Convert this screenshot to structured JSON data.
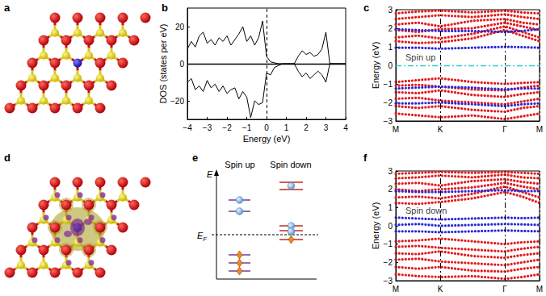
{
  "panel_labels": [
    "a",
    "b",
    "c",
    "d",
    "e",
    "f"
  ],
  "chart_data": [
    {
      "type": "line",
      "xlabel": "Energy (eV)",
      "ylabel": "DOS (states per eV)",
      "xlim": [
        -4,
        4
      ],
      "ylim": [
        -30,
        30
      ],
      "xticks": [
        {
          "value": -4,
          "label": "−4"
        },
        {
          "value": -3,
          "label": "−3"
        },
        {
          "value": -2,
          "label": "−2"
        },
        {
          "value": -1,
          "label": "−1"
        },
        0,
        1,
        2,
        3,
        4
      ],
      "yticks": [
        {
          "value": -20,
          "label": "−20"
        },
        0,
        20
      ],
      "grid": false,
      "vlines": [
        {
          "value": 0,
          "line_style": "dashed",
          "color": "#000000"
        }
      ],
      "hlines": [
        {
          "value": 0,
          "line_style": "solid",
          "color": "#000000"
        }
      ],
      "x": [
        -4,
        -3.8,
        -3.6,
        -3.4,
        -3.2,
        -3.0,
        -2.8,
        -2.6,
        -2.4,
        -2.2,
        -2.0,
        -1.8,
        -1.6,
        -1.4,
        -1.2,
        -1.0,
        -0.8,
        -0.6,
        -0.4,
        -0.2,
        0,
        0.2,
        0.4,
        0.6,
        0.8,
        1.0,
        1.2,
        1.4,
        1.6,
        1.8,
        2.0,
        2.2,
        2.4,
        2.6,
        2.8,
        3.0,
        3.2,
        3.4,
        3.6,
        3.8,
        4.0
      ],
      "series": [
        {
          "color": "#000000",
          "line_style": "solid",
          "marker": "none",
          "values": [
            8,
            12,
            9,
            15,
            17,
            11,
            13,
            10,
            14,
            12,
            15,
            10,
            13,
            16,
            20,
            12,
            15,
            10,
            14,
            23,
            4,
            1,
            0.5,
            0,
            0,
            0,
            0,
            0,
            4,
            7,
            5,
            6,
            4,
            5,
            8,
            17,
            0,
            0,
            0,
            0,
            0
          ]
        },
        {
          "color": "#000000",
          "line_style": "solid",
          "marker": "none",
          "values": [
            -10,
            -8,
            -14,
            -12,
            -15,
            -9,
            -13,
            -11,
            -15,
            -12,
            -16,
            -14,
            -13,
            -19,
            -15,
            -18,
            -29,
            -20,
            -22,
            -21,
            -5,
            -6,
            -2,
            -1,
            0,
            0,
            0,
            0,
            -4,
            -7,
            -5,
            -8,
            -6,
            -4,
            -6,
            -10,
            0,
            0,
            0,
            0,
            0
          ]
        }
      ]
    },
    {
      "type": "line",
      "ylabel": "Energy (eV)",
      "xlim": [
        0,
        1.78
      ],
      "ylim": [
        -3,
        3
      ],
      "xticks": [
        {
          "value": 0,
          "label": "M"
        },
        {
          "value": 0.55,
          "label": "K"
        },
        {
          "value": 1.35,
          "label": "Γ"
        },
        {
          "value": 1.78,
          "label": "M"
        }
      ],
      "yticks": [
        {
          "value": -3,
          "label": "−3"
        },
        {
          "value": -2,
          "label": "−2"
        },
        {
          "value": -1,
          "label": "−1"
        },
        0,
        1,
        2,
        3
      ],
      "grid": "x",
      "hlines": [
        {
          "value": 0,
          "line_style": "dashdot",
          "color": "#33cccc"
        }
      ],
      "annotations": [
        {
          "text": "Spin up",
          "x": 0.12,
          "y": 0.45
        }
      ],
      "x": [
        0,
        0.275,
        0.55,
        0.95,
        1.35,
        1.565,
        1.78
      ],
      "series": [
        {
          "color": "#e41a1c",
          "line_style": "dotted",
          "marker": "none",
          "values": [
            1.3,
            1.2,
            1.25,
            1.45,
            1.9,
            1.6,
            1.3
          ]
        },
        {
          "color": "#e41a1c",
          "line_style": "dotted",
          "marker": "none",
          "values": [
            1.5,
            1.6,
            1.45,
            1.7,
            2.1,
            1.8,
            1.5
          ]
        },
        {
          "color": "#e41a1c",
          "line_style": "dotted",
          "marker": "none",
          "values": [
            1.9,
            1.8,
            1.95,
            2.0,
            2.3,
            2.1,
            1.9
          ]
        },
        {
          "color": "#e41a1c",
          "line_style": "dotted",
          "marker": "none",
          "values": [
            2.2,
            2.3,
            2.1,
            2.4,
            2.5,
            2.3,
            2.2
          ]
        },
        {
          "color": "#e41a1c",
          "line_style": "dotted",
          "marker": "none",
          "values": [
            2.5,
            2.6,
            2.7,
            2.6,
            2.75,
            2.6,
            2.5
          ]
        },
        {
          "color": "#e41a1c",
          "line_style": "dotted",
          "marker": "none",
          "values": [
            2.8,
            2.9,
            2.95,
            2.85,
            2.95,
            2.85,
            2.8
          ]
        },
        {
          "color": "#e41a1c",
          "line_style": "dotted",
          "marker": "none",
          "values": [
            -0.9,
            -0.8,
            -0.7,
            -0.9,
            -1.0,
            -0.95,
            -0.9
          ]
        },
        {
          "color": "#e41a1c",
          "line_style": "dotted",
          "marker": "none",
          "values": [
            -1.1,
            -1.05,
            -1.15,
            -1.3,
            -1.35,
            -1.2,
            -1.1
          ]
        },
        {
          "color": "#e41a1c",
          "line_style": "dotted",
          "marker": "none",
          "values": [
            -1.45,
            -1.5,
            -1.35,
            -1.6,
            -1.7,
            -1.55,
            -1.45
          ]
        },
        {
          "color": "#e41a1c",
          "line_style": "dotted",
          "marker": "none",
          "values": [
            -1.8,
            -1.75,
            -1.9,
            -2.0,
            -2.1,
            -1.95,
            -1.8
          ]
        },
        {
          "color": "#e41a1c",
          "line_style": "dotted",
          "marker": "none",
          "values": [
            -2.2,
            -2.3,
            -2.2,
            -2.4,
            -2.5,
            -2.3,
            -2.2
          ]
        },
        {
          "color": "#e41a1c",
          "line_style": "dotted",
          "marker": "none",
          "values": [
            -2.6,
            -2.7,
            -2.8,
            -2.7,
            -2.9,
            -2.75,
            -2.6
          ]
        },
        {
          "color": "#2a2ad6",
          "line_style": "dotted",
          "marker": "none",
          "values": [
            0.95,
            0.95,
            0.9,
            0.95,
            1.0,
            0.98,
            0.95
          ]
        },
        {
          "color": "#2a2ad6",
          "line_style": "dotted",
          "marker": "none",
          "values": [
            1.95,
            1.9,
            1.85,
            1.85,
            1.8,
            1.85,
            1.95
          ]
        },
        {
          "color": "#2a2ad6",
          "line_style": "dotted",
          "marker": "none",
          "values": [
            -1.25,
            -1.2,
            -1.15,
            -1.2,
            -1.3,
            -1.25,
            -1.25
          ]
        },
        {
          "color": "#2a2ad6",
          "line_style": "dotted",
          "marker": "none",
          "values": [
            -2.05,
            -2.05,
            -2.0,
            -2.1,
            -2.2,
            -2.1,
            -2.05
          ]
        }
      ]
    },
    {
      "type": "line",
      "ylabel": "Energy (eV)",
      "xlim": [
        0,
        1.78
      ],
      "ylim": [
        -3,
        3
      ],
      "xticks": [
        {
          "value": 0,
          "label": "M"
        },
        {
          "value": 0.55,
          "label": "K"
        },
        {
          "value": 1.35,
          "label": "Γ"
        },
        {
          "value": 1.78,
          "label": "M"
        }
      ],
      "yticks": [
        {
          "value": -3,
          "label": "−3"
        },
        {
          "value": -2,
          "label": "−2"
        },
        {
          "value": -1,
          "label": "−1"
        },
        0,
        1,
        2,
        3
      ],
      "grid": "x",
      "annotations": [
        {
          "text": "Spin down",
          "x": 0.12,
          "y": 0.85
        }
      ],
      "x": [
        0,
        0.275,
        0.55,
        0.95,
        1.35,
        1.565,
        1.78
      ],
      "series": [
        {
          "color": "#e41a1c",
          "line_style": "dotted",
          "marker": "none",
          "values": [
            1.25,
            1.2,
            1.3,
            1.5,
            1.85,
            1.6,
            1.25
          ]
        },
        {
          "color": "#e41a1c",
          "line_style": "dotted",
          "marker": "none",
          "values": [
            1.55,
            1.6,
            1.5,
            1.75,
            2.15,
            1.85,
            1.55
          ]
        },
        {
          "color": "#e41a1c",
          "line_style": "dotted",
          "marker": "none",
          "values": [
            2.0,
            1.9,
            2.0,
            2.1,
            2.35,
            2.15,
            2.0
          ]
        },
        {
          "color": "#e41a1c",
          "line_style": "dotted",
          "marker": "none",
          "values": [
            2.3,
            2.35,
            2.2,
            2.45,
            2.55,
            2.4,
            2.3
          ]
        },
        {
          "color": "#e41a1c",
          "line_style": "dotted",
          "marker": "none",
          "values": [
            2.6,
            2.65,
            2.75,
            2.65,
            2.8,
            2.65,
            2.6
          ]
        },
        {
          "color": "#e41a1c",
          "line_style": "dotted",
          "marker": "none",
          "values": [
            2.85,
            2.9,
            2.95,
            2.9,
            2.95,
            2.9,
            2.85
          ]
        },
        {
          "color": "#e41a1c",
          "line_style": "dotted",
          "marker": "none",
          "values": [
            -0.85,
            -0.8,
            -0.7,
            -0.85,
            -1.0,
            -0.9,
            -0.85
          ]
        },
        {
          "color": "#e41a1c",
          "line_style": "dotted",
          "marker": "none",
          "values": [
            -1.15,
            -1.1,
            -1.2,
            -1.3,
            -1.4,
            -1.25,
            -1.15
          ]
        },
        {
          "color": "#e41a1c",
          "line_style": "dotted",
          "marker": "none",
          "values": [
            -1.5,
            -1.55,
            -1.4,
            -1.65,
            -1.75,
            -1.6,
            -1.5
          ]
        },
        {
          "color": "#e41a1c",
          "line_style": "dotted",
          "marker": "none",
          "values": [
            -1.85,
            -1.8,
            -1.95,
            -2.05,
            -2.15,
            -2.0,
            -1.85
          ]
        },
        {
          "color": "#e41a1c",
          "line_style": "dotted",
          "marker": "none",
          "values": [
            -2.25,
            -2.35,
            -2.25,
            -2.45,
            -2.5,
            -2.35,
            -2.25
          ]
        },
        {
          "color": "#e41a1c",
          "line_style": "dotted",
          "marker": "none",
          "values": [
            -2.65,
            -2.75,
            -2.8,
            -2.75,
            -2.9,
            -2.8,
            -2.65
          ]
        },
        {
          "color": "#2a2ad6",
          "line_style": "dotted",
          "marker": "none",
          "values": [
            1.9,
            1.85,
            1.85,
            1.9,
            1.95,
            1.9,
            1.9
          ]
        },
        {
          "color": "#2a2ad6",
          "line_style": "dotted",
          "marker": "none",
          "values": [
            0.45,
            0.4,
            0.35,
            0.4,
            0.45,
            0.42,
            0.45
          ]
        },
        {
          "color": "#2a2ad6",
          "line_style": "dotted",
          "marker": "none",
          "values": [
            0.05,
            0.1,
            0.0,
            0.05,
            0.1,
            0.08,
            0.05
          ]
        },
        {
          "color": "#2a2ad6",
          "line_style": "dotted",
          "marker": "none",
          "values": [
            -0.3,
            -0.3,
            -0.35,
            -0.3,
            -0.25,
            -0.28,
            -0.3
          ]
        }
      ]
    }
  ],
  "level_diagram": {
    "columns": [
      "Spin up",
      "Spin down"
    ],
    "energy_axis": "E",
    "fermi_level": {
      "text": "E",
      "subscript": "F"
    }
  }
}
